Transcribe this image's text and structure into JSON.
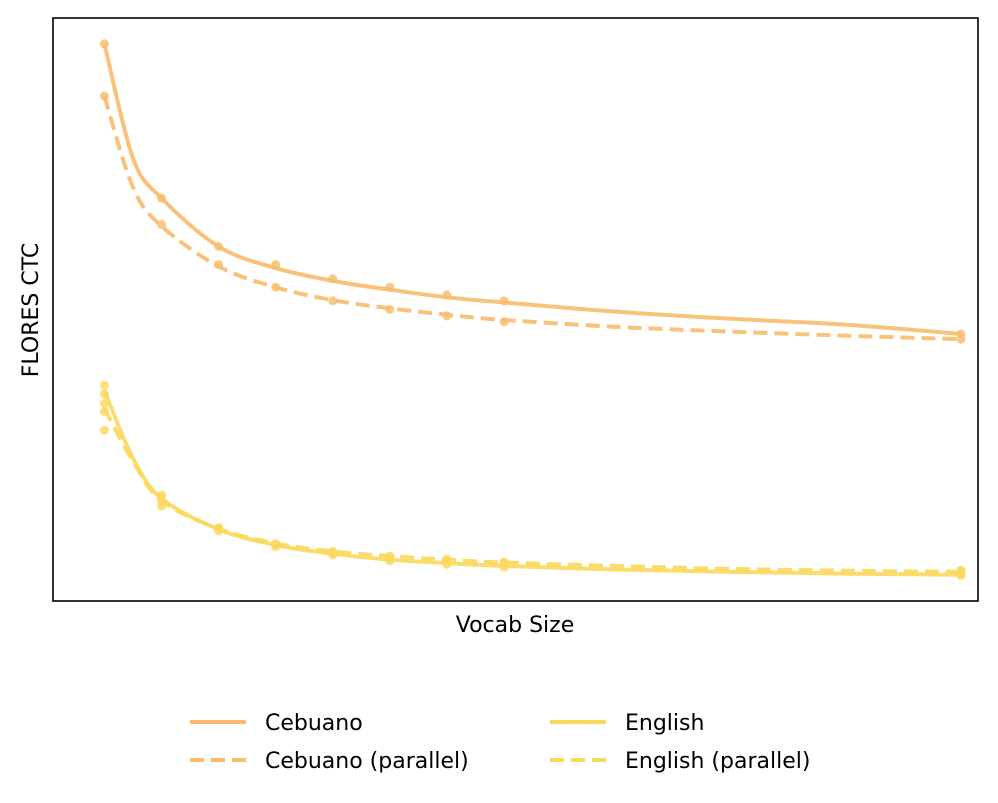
{
  "chart_data": {
    "type": "line",
    "title": "",
    "xlabel": "Vocab Size",
    "ylabel": "FLORES CTC",
    "x_tick_labels": false,
    "y_tick_labels": false,
    "grid": false,
    "xlim": [
      0.1,
      16.3
    ],
    "ylim": [
      0,
      1
    ],
    "x": [
      1,
      2,
      3,
      4,
      5,
      6,
      7,
      8,
      16
    ],
    "legend_position": "bottom-center, 2 columns",
    "series": [
      {
        "name": "Cebuano",
        "style": "solid",
        "color": "#f7bb6b",
        "points": [
          1,
          0.956,
          2,
          0.691,
          3,
          0.608,
          4,
          0.577,
          5,
          0.553,
          6,
          0.538,
          7,
          0.525,
          8,
          0.515,
          16,
          0.458
        ],
        "curve": [
          1,
          0.956,
          1.5,
          0.76,
          2,
          0.691,
          3,
          0.608,
          4,
          0.571,
          5,
          0.549,
          6,
          0.534,
          7,
          0.521,
          8,
          0.512,
          10,
          0.496,
          12,
          0.484,
          14,
          0.474,
          16,
          0.458
        ]
      },
      {
        "name": "Cebuano (parallel)",
        "style": "dashed",
        "color": "#f7bb6b",
        "points": [
          1,
          0.866,
          2,
          0.646,
          3,
          0.577,
          4,
          0.538,
          5,
          0.515,
          6,
          0.5,
          7,
          0.489,
          8,
          0.479,
          16,
          0.449
        ],
        "curve": [
          1,
          0.866,
          1.5,
          0.71,
          2,
          0.643,
          3,
          0.574,
          4,
          0.538,
          5,
          0.516,
          6,
          0.502,
          7,
          0.491,
          8,
          0.482,
          10,
          0.47,
          12,
          0.462,
          14,
          0.455,
          16,
          0.449
        ]
      },
      {
        "name": "English",
        "style": "solid",
        "color": "#fad85c",
        "points": [
          1,
          0.37,
          1,
          0.355,
          2,
          0.182,
          2,
          0.171,
          3,
          0.126,
          3,
          0.12,
          4,
          0.098,
          4,
          0.093,
          5,
          0.083,
          5,
          0.079,
          6,
          0.074,
          6,
          0.069,
          7,
          0.068,
          7,
          0.063,
          8,
          0.063,
          8,
          0.058,
          16,
          0.05,
          16,
          0.044
        ],
        "curve": [
          1,
          0.361,
          1.5,
          0.245,
          2,
          0.176,
          3,
          0.123,
          4,
          0.096,
          5,
          0.081,
          6,
          0.071,
          7,
          0.065,
          8,
          0.06,
          10,
          0.054,
          12,
          0.05,
          14,
          0.047,
          16,
          0.045
        ]
      },
      {
        "name": "English (parallel)",
        "style": "dashed",
        "color": "#fad85c",
        "points": [
          1,
          0.339,
          1,
          0.325,
          1,
          0.293,
          2,
          0.177,
          2,
          0.163,
          3,
          0.124,
          4,
          0.098,
          5,
          0.085,
          6,
          0.077,
          7,
          0.072,
          8,
          0.067,
          8,
          0.064,
          16,
          0.053,
          16,
          0.046
        ],
        "curve": [
          1,
          0.33,
          1.5,
          0.24,
          2,
          0.172,
          3,
          0.124,
          4,
          0.099,
          5,
          0.085,
          6,
          0.077,
          7,
          0.071,
          8,
          0.066,
          10,
          0.06,
          12,
          0.055,
          14,
          0.052,
          16,
          0.05
        ]
      }
    ]
  }
}
